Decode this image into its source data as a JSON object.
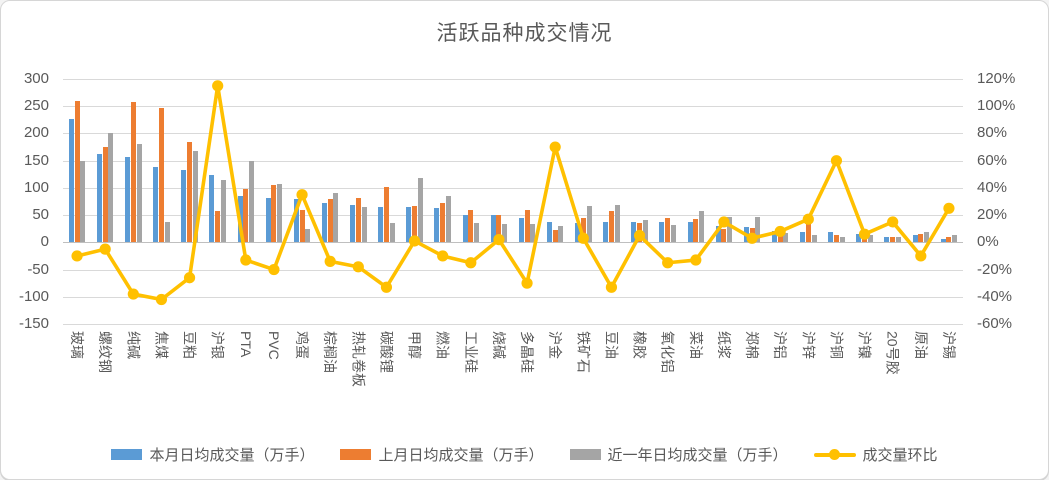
{
  "title": "活跃品种成交情况",
  "colors": {
    "series_blue": "#5B9BD5",
    "series_orange": "#ED7D31",
    "series_gray": "#A5A5A5",
    "series_yellow": "#FFC000",
    "text": "#595959",
    "gridline": "#D9D9D9"
  },
  "left_axis": {
    "ticks": [
      "300",
      "250",
      "200",
      "150",
      "100",
      "50",
      "0",
      "-50",
      "-100",
      "-150"
    ],
    "max": 300,
    "min": -150,
    "step": 50
  },
  "right_axis": {
    "ticks": [
      "120%",
      "100%",
      "80%",
      "60%",
      "40%",
      "20%",
      "0%",
      "-20%",
      "-40%",
      "-60%"
    ],
    "max": 120,
    "min": -60,
    "step": 20
  },
  "legend": [
    {
      "label": "本月日均成交量（万手）",
      "type": "bar",
      "color": "#5B9BD5"
    },
    {
      "label": "上月日均成交量（万手）",
      "type": "bar",
      "color": "#ED7D31"
    },
    {
      "label": "近一年日均成交量（万手）",
      "type": "bar",
      "color": "#A5A5A5"
    },
    {
      "label": "成交量环比",
      "type": "line",
      "color": "#FFC000"
    }
  ],
  "chart_data": {
    "type": "bar",
    "subtype": "grouped bars + line on secondary axis",
    "title": "活跃品种成交情况",
    "categories": [
      "玻璃",
      "螺纹钢",
      "纯碱",
      "焦煤",
      "豆粕",
      "沪银",
      "PTA",
      "PVC",
      "鸡蛋",
      "棕榈油",
      "热轧卷板",
      "碳酸锂",
      "甲醇",
      "燃油",
      "工业硅",
      "烧碱",
      "多晶硅",
      "沪金",
      "铁矿石",
      "豆油",
      "橡胶",
      "氧化铝",
      "菜油",
      "纸浆",
      "郑棉",
      "沪铝",
      "沪锌",
      "沪铜",
      "沪镍",
      "20号胶",
      "原油",
      "沪锡"
    ],
    "series": [
      {
        "name": "本月日均成交量（万手）",
        "type": "bar",
        "axis": "left",
        "color": "#5B9BD5",
        "values": [
          226,
          162,
          156,
          139,
          132,
          123,
          85,
          82,
          80,
          72,
          68,
          65,
          64,
          63,
          50,
          50,
          45,
          38,
          35,
          38,
          37,
          37,
          37,
          30,
          28,
          20,
          19,
          19,
          15,
          9,
          13,
          7
        ]
      },
      {
        "name": "上月日均成交量（万手）",
        "type": "bar",
        "axis": "left",
        "color": "#ED7D31",
        "values": [
          260,
          175,
          257,
          247,
          184,
          57,
          98,
          105,
          60,
          80,
          82,
          102,
          66,
          72,
          60,
          50,
          60,
          23,
          45,
          58,
          35,
          44,
          42,
          24,
          27,
          22,
          37,
          13,
          14,
          10,
          16,
          9
        ]
      },
      {
        "name": "近一年日均成交量（万手）",
        "type": "bar",
        "axis": "left",
        "color": "#A5A5A5",
        "values": [
          150,
          201,
          180,
          37,
          167,
          114,
          149,
          108,
          24,
          90,
          64,
          36,
          118,
          86,
          35,
          33,
          34,
          30,
          66,
          68,
          41,
          31,
          58,
          46,
          46,
          18,
          14,
          10,
          14,
          10,
          19,
          13
        ]
      },
      {
        "name": "成交量环比",
        "type": "line",
        "axis": "right",
        "unit": "%",
        "color": "#FFC000",
        "values": [
          -10,
          -5,
          -38,
          -42,
          -26,
          115,
          -13,
          -20,
          35,
          -14,
          -18,
          -33,
          1,
          -10,
          -15,
          2,
          -30,
          70,
          3,
          -33,
          5,
          -15,
          -13,
          15,
          3,
          8,
          17,
          60,
          6,
          15,
          -10,
          25
        ]
      }
    ],
    "left_ylim": [
      -150,
      300
    ],
    "right_ylim_pct": [
      -60,
      120
    ],
    "grid": "horizontal",
    "legend_position": "bottom"
  }
}
